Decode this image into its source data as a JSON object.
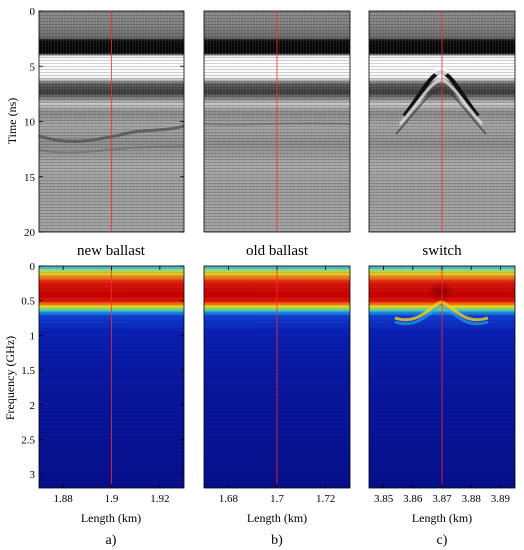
{
  "figure": {
    "panel_letters": [
      "a)",
      "b)",
      "c)"
    ]
  },
  "chart_data": [
    {
      "type": "heatmap",
      "title": "new ballast",
      "ylabel": "Time (ns)",
      "ylim": [
        20,
        0
      ],
      "yticks": [
        0,
        5,
        10,
        15,
        20
      ],
      "xlim": [
        1.87,
        1.93
      ],
      "marker_line_x": 1.9
    },
    {
      "type": "heatmap",
      "title": "old ballast",
      "ylim": [
        20,
        0
      ],
      "xlim": [
        1.67,
        1.73
      ],
      "marker_line_x": 1.7
    },
    {
      "type": "heatmap",
      "title": "switch",
      "ylim": [
        20,
        0
      ],
      "xlim": [
        3.845,
        3.895
      ],
      "marker_line_x": 3.87
    },
    {
      "type": "heatmap",
      "ylabel": "Frequency (GHz)",
      "xlabel": "Length (km)",
      "ylim": [
        3.2,
        0
      ],
      "yticks": [
        0,
        0.5,
        1,
        1.5,
        2,
        2.5,
        3
      ],
      "ytick_labels": [
        "0",
        "0.5",
        "1",
        "1.5",
        "2",
        "2.5",
        "3"
      ],
      "xlim": [
        1.87,
        1.93
      ],
      "xticks": [
        1.88,
        1.9,
        1.92
      ],
      "xtick_labels": [
        "1.88",
        "1.9",
        "1.92"
      ],
      "marker_line_x": 1.9
    },
    {
      "type": "heatmap",
      "xlabel": "Length (km)",
      "ylim": [
        3.2,
        0
      ],
      "xlim": [
        1.67,
        1.73
      ],
      "xticks": [
        1.68,
        1.7,
        1.72
      ],
      "xtick_labels": [
        "1.68",
        "1.7",
        "1.72"
      ],
      "marker_line_x": 1.7
    },
    {
      "type": "heatmap",
      "xlabel": "Length (km)",
      "ylim": [
        3.2,
        0
      ],
      "xlim": [
        3.845,
        3.895
      ],
      "xticks": [
        3.85,
        3.86,
        3.87,
        3.88,
        3.89
      ],
      "xtick_labels": [
        "3.85",
        "3.86",
        "3.87",
        "3.88",
        "3.89"
      ],
      "marker_line_x": 3.87
    }
  ]
}
